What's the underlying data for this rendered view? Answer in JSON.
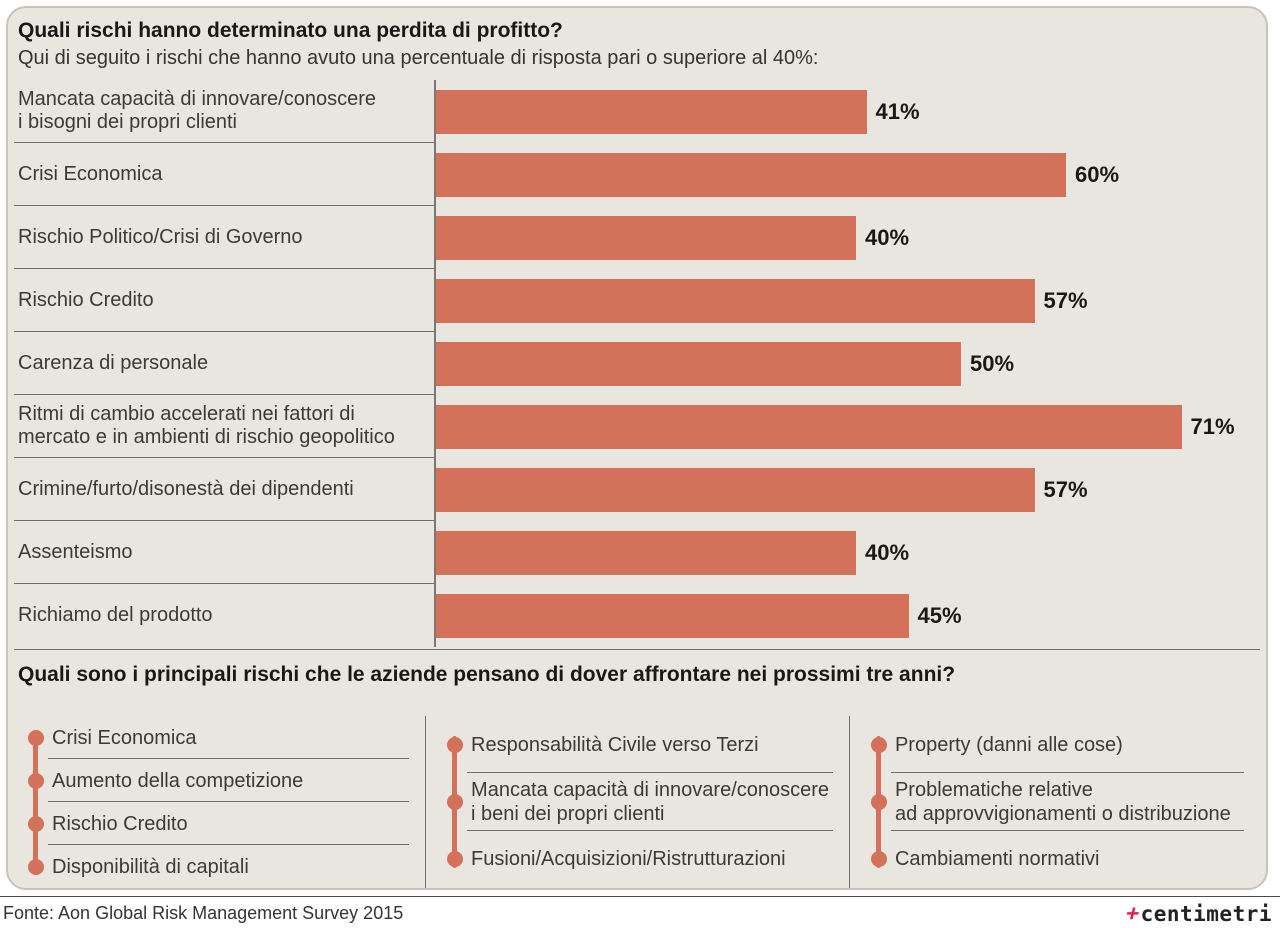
{
  "section1": {
    "title": "Quali rischi hanno determinato una perdita di profitto?",
    "subtitle": "Qui di seguito i rischi che hanno avuto una percentuale di risposta pari o superiore al 40%:"
  },
  "chart_data": {
    "type": "bar",
    "orientation": "horizontal",
    "unit": "%",
    "categories": [
      "Mancata capacità di innovare/conoscere\ni bisogni dei propri clienti",
      "Crisi Economica",
      "Rischio Politico/Crisi di Governo",
      "Rischio Credito",
      "Carenza di personale",
      "Ritmi di cambio accelerati nei fattori di\nmercato e in ambienti di rischio geopolitico",
      "Crimine/furto/disonestà dei dipendenti",
      "Assenteismo",
      "Richiamo del prodotto"
    ],
    "values": [
      41,
      60,
      40,
      57,
      50,
      71,
      57,
      40,
      45
    ],
    "value_labels": [
      "41%",
      "60%",
      "40%",
      "57%",
      "50%",
      "71%",
      "57%",
      "40%",
      "45%"
    ],
    "xlim": [
      0,
      80
    ],
    "bar_color": "#d3715a",
    "legend": "none",
    "grid": "off"
  },
  "section2": {
    "title": "Quali sono i principali rischi che le aziende pensano di dover affrontare nei prossimi tre anni?",
    "columns": [
      {
        "items": [
          "Crisi Economica",
          "Aumento della competizione",
          "Rischio Credito",
          "Disponibilità di capitali"
        ]
      },
      {
        "items": [
          "Responsabilità Civile verso Terzi",
          "Mancata capacità di innovare/conoscere\ni beni dei propri clienti",
          "Fusioni/Acquisizioni/Ristrutturazioni"
        ]
      },
      {
        "items": [
          "Property (danni alle cose)",
          "Problematiche relative\nad approvvigionamenti o distribuzione",
          "Cambiamenti normativi"
        ]
      }
    ]
  },
  "footer": {
    "source": "Fonte: Aon Global Risk Management Survey 2015",
    "logo_mark": "+",
    "logo_text": "centimetri"
  },
  "colors": {
    "card_background": "#e8e6de",
    "bar": "#d3715a",
    "accent_red": "#e61e50",
    "text_dark": "#181816",
    "text_label": "#3b3a37"
  }
}
